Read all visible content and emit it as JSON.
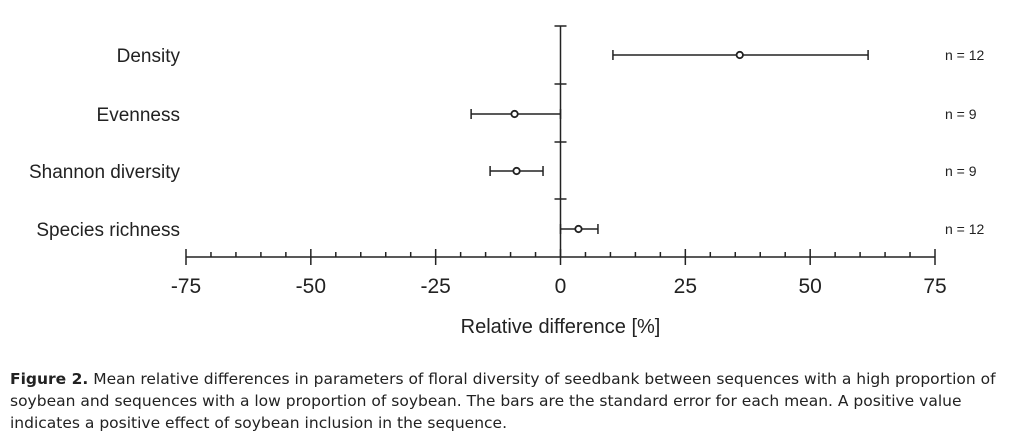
{
  "chart_data": {
    "type": "forest",
    "categories": [
      "Density",
      "Evenness",
      "Shannon diversity",
      "Species richness"
    ],
    "means": [
      35.9,
      -9.2,
      -8.8,
      3.6
    ],
    "lower": [
      10.5,
      -17.9,
      -14.1,
      0.0
    ],
    "upper": [
      61.6,
      0.0,
      -3.5,
      7.5
    ],
    "n_labels": [
      "n = 12",
      "n = 9",
      "n = 9",
      "n = 12"
    ],
    "xlabel": "Relative difference [%]",
    "xlim": [
      -75,
      75
    ],
    "xticks": [
      -75,
      -50,
      -25,
      0,
      25,
      50,
      75
    ],
    "xtick_labels": [
      "-75",
      "-50",
      "-25",
      "0",
      "25",
      "50",
      "75"
    ],
    "minor_tick_step": 5,
    "grid": false
  },
  "caption": {
    "label": "Figure 2.",
    "text": " Mean relative differences in parameters of floral diversity of seedbank between sequences with a high proportion of soybean and sequences with a low proportion of soybean. The bars are the standard error for each mean. A positive value indicates a positive effect of soybean inclusion in the sequence."
  }
}
